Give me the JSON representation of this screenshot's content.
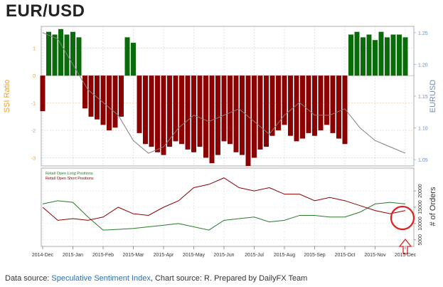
{
  "title": "EUR/USD",
  "footer": {
    "prefix": "Data source: ",
    "link": "Speculative Sentiment Index",
    "suffix": ", Chart source: R. Prepared by DailyFX Team"
  },
  "colors": {
    "long": "#0a6b0a",
    "short": "#8b0000",
    "price": "#7f7f7f",
    "ssi_axis": "#e8a030",
    "eurusd_axis": "#6e8fb8",
    "highlight": "#e02020"
  },
  "chart_data": [
    {
      "type": "bar",
      "title": "",
      "ylabel": "SSI Ratio",
      "y2label": "EURUSD",
      "ylim": [
        -3.3,
        1.8
      ],
      "y_ticks": [
        -3,
        -2,
        -1,
        0,
        1
      ],
      "y2lim": [
        1.04,
        1.26
      ],
      "y2_ticks": [
        "1.05",
        "1.10",
        "1.15",
        "1.20",
        "1.25"
      ],
      "x_ticks": [
        "2014-Dec",
        "2015-Jan",
        "2015-Feb",
        "2015-Mar",
        "2015-Apr",
        "2015-May",
        "2015-Jun",
        "2015-Jul",
        "2015-Aug",
        "2015-Sep",
        "2015-Oct",
        "2015-Nov",
        "2015-Dec"
      ],
      "ssi_series": {
        "x": [
          0,
          0.2,
          0.4,
          0.6,
          0.8,
          1.0,
          1.2,
          1.4,
          1.6,
          1.8,
          2.0,
          2.2,
          2.4,
          2.6,
          2.8,
          3.0,
          3.2,
          3.4,
          3.6,
          3.8,
          4.0,
          4.2,
          4.4,
          4.6,
          4.8,
          5.0,
          5.2,
          5.4,
          5.6,
          5.8,
          6.0,
          6.2,
          6.4,
          6.6,
          6.8,
          7.0,
          7.2,
          7.4,
          7.6,
          7.8,
          8.0,
          8.2,
          8.4,
          8.6,
          8.8,
          9.0,
          9.2,
          9.4,
          9.6,
          9.8,
          10.0,
          10.2,
          10.4,
          10.6,
          10.8,
          11.0,
          11.2,
          11.4,
          11.6,
          11.8,
          12.0
        ],
        "values": [
          -1.3,
          1.6,
          1.5,
          1.7,
          1.5,
          1.6,
          1.4,
          -1.2,
          -1.5,
          -1.6,
          -1.8,
          -2.0,
          -1.9,
          -1.5,
          1.4,
          1.2,
          -2.1,
          -2.5,
          -2.6,
          -2.8,
          -2.9,
          -2.6,
          -2.4,
          -2.5,
          -2.7,
          -2.8,
          -2.6,
          -3.0,
          -3.2,
          -2.9,
          -2.4,
          -2.5,
          -2.8,
          -2.9,
          -3.3,
          -3.0,
          -2.7,
          -2.6,
          -2.2,
          -2.0,
          -1.8,
          -2.2,
          -2.4,
          -2.3,
          -2.1,
          -2.2,
          -2.0,
          -1.8,
          -2.1,
          -2.3,
          -2.5,
          1.5,
          1.6,
          1.4,
          1.5,
          1.3,
          1.6,
          1.4,
          1.5,
          1.5,
          1.4
        ]
      },
      "eurusd_series": {
        "x": [
          0,
          0.5,
          1.0,
          1.5,
          2.0,
          2.5,
          3.0,
          3.5,
          4.0,
          4.5,
          5.0,
          5.5,
          6.0,
          6.5,
          7.0,
          7.5,
          8.0,
          8.5,
          9.0,
          9.5,
          10.0,
          10.5,
          11.0,
          11.5,
          12.0
        ],
        "values": [
          1.25,
          1.24,
          1.2,
          1.16,
          1.14,
          1.12,
          1.08,
          1.06,
          1.07,
          1.1,
          1.12,
          1.11,
          1.12,
          1.13,
          1.11,
          1.09,
          1.12,
          1.14,
          1.12,
          1.12,
          1.13,
          1.1,
          1.08,
          1.07,
          1.06
        ]
      }
    },
    {
      "type": "line",
      "title": "",
      "ylabel": "# of Orders",
      "ylim": [
        3000,
        27000
      ],
      "y_ticks": [
        "5000",
        "10000",
        "15000",
        "20000"
      ],
      "legend": [
        "Retail Open Long Positions",
        "Retail Open Short Positions"
      ],
      "legend_position": "top-left",
      "x_ticks": [
        "2014-Dec",
        "2015-Jan",
        "2015-Feb",
        "2015-Mar",
        "2015-Apr",
        "2015-May",
        "2015-Jun",
        "2015-Jul",
        "2015-Aug",
        "2015-Sep",
        "2015-Oct",
        "2015-Nov",
        "2015-Dec"
      ],
      "x": [
        0,
        0.5,
        1.0,
        1.5,
        2.0,
        2.5,
        3.0,
        3.5,
        4.0,
        4.5,
        5.0,
        5.5,
        6.0,
        6.5,
        7.0,
        7.5,
        8.0,
        8.5,
        9.0,
        9.5,
        10.0,
        10.5,
        11.0,
        11.5,
        12.0
      ],
      "series": [
        {
          "name": "Retail Open Long Positions",
          "values": [
            16000,
            17000,
            16500,
            12000,
            8000,
            8200,
            8500,
            9000,
            9500,
            10000,
            9000,
            8000,
            11000,
            11500,
            12000,
            10500,
            11000,
            12500,
            12500,
            12000,
            12000,
            13500,
            16000,
            16500,
            16000
          ]
        },
        {
          "name": "Retail Open Short Positions",
          "values": [
            15000,
            11000,
            11500,
            11000,
            12000,
            15000,
            13000,
            12500,
            15000,
            17000,
            21000,
            22000,
            24000,
            21000,
            20000,
            21000,
            19000,
            19000,
            17000,
            18000,
            17000,
            15500,
            14000,
            13000,
            14000
          ]
        }
      ],
      "annotation": "red circle highlighting the latest readings, with an upward arrow beneath"
    }
  ]
}
